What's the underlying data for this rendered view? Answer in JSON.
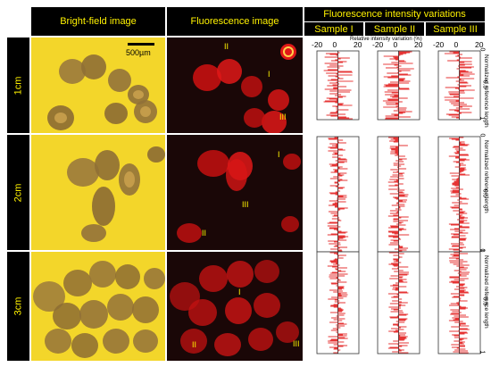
{
  "headers": {
    "bright_field": "Bright-field image",
    "fluorescence": "Fluorescence image",
    "intensity": "Fluorescence intensity variations"
  },
  "samples": [
    "Sample I",
    "Sample II",
    "Sample III"
  ],
  "rows": [
    "1cm",
    "2cm",
    "3cm"
  ],
  "scale_bar": "500µm",
  "axis": {
    "top_ticks": [
      "-20",
      "0",
      "20"
    ],
    "top_label": "Relative intensity variation (%)",
    "side_ticks": [
      "0",
      "0.5",
      "1"
    ],
    "side_label": "Normalized reference length"
  },
  "annotations": {
    "row1": [
      "II",
      "I",
      "III"
    ],
    "row2": [
      "I",
      "III",
      "II"
    ],
    "row3": [
      "I",
      "II",
      "III"
    ]
  },
  "colors": {
    "header_text": "#fff200",
    "bright_field_bg": "#f3d62a",
    "fluor_bg": "#1a0707",
    "profile": "#e00000"
  }
}
